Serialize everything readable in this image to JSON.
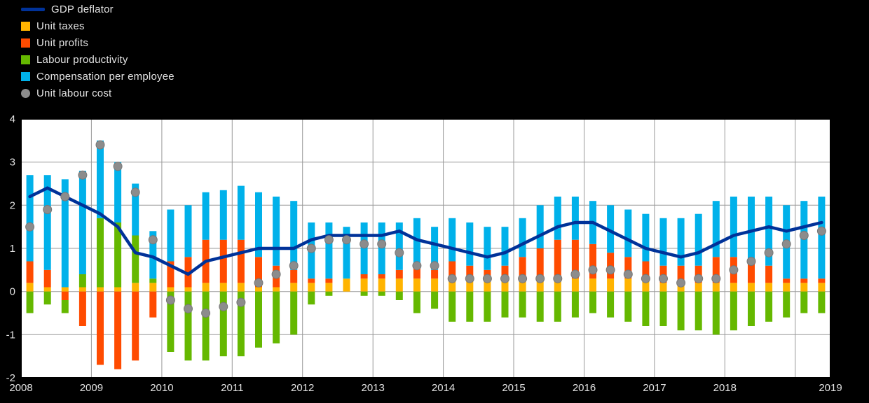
{
  "colors": {
    "background": "#000000",
    "plot_background": "#ffffff",
    "grid": "#999999",
    "border": "#000000",
    "axis_text": "#e2e2e2",
    "deflator_line": "#003299",
    "unit_taxes": "#FFB400",
    "unit_profits": "#FF4B00",
    "labour_productivity": "#65B800",
    "compensation": "#00B1EA",
    "unit_labour_cost": "#8c8c8c"
  },
  "legend": {
    "items": [
      {
        "label": "GDP deflator",
        "type": "line",
        "color": "#003299"
      },
      {
        "label": "Unit taxes",
        "type": "box",
        "color": "#FFB400"
      },
      {
        "label": "Unit profits",
        "type": "box",
        "color": "#FF4B00"
      },
      {
        "label": "Labour productivity",
        "type": "box",
        "color": "#65B800"
      },
      {
        "label": "Compensation per employee",
        "type": "box",
        "color": "#00B1EA"
      },
      {
        "label": "Unit labour cost",
        "type": "dot",
        "color": "#8c8c8c"
      }
    ]
  },
  "chart_data": {
    "type": "bar",
    "subtype": "stacked-bars-with-line-and-dots",
    "title": "",
    "xlabel": "",
    "ylabel": "",
    "ylim": [
      -2,
      4
    ],
    "y_ticks": [
      -2,
      -1,
      0,
      1,
      2,
      3,
      4
    ],
    "grid": true,
    "legend_position": "top-left",
    "x_tick_labels": [
      "2008",
      "2009",
      "2010",
      "2011",
      "2012",
      "2013",
      "2014",
      "2015",
      "2016",
      "2017",
      "2018",
      "2019"
    ],
    "categories": [
      "2008Q1",
      "2008Q2",
      "2008Q3",
      "2008Q4",
      "2009Q1",
      "2009Q2",
      "2009Q3",
      "2009Q4",
      "2010Q1",
      "2010Q2",
      "2010Q3",
      "2010Q4",
      "2011Q1",
      "2011Q2",
      "2011Q3",
      "2011Q4",
      "2012Q1",
      "2012Q2",
      "2012Q3",
      "2012Q4",
      "2013Q1",
      "2013Q2",
      "2013Q3",
      "2013Q4",
      "2014Q1",
      "2014Q2",
      "2014Q3",
      "2014Q4",
      "2015Q1",
      "2015Q2",
      "2015Q3",
      "2015Q4",
      "2016Q1",
      "2016Q2",
      "2016Q3",
      "2016Q4",
      "2017Q1",
      "2017Q2",
      "2017Q3",
      "2017Q4",
      "2018Q1",
      "2018Q2",
      "2018Q3",
      "2018Q4",
      "2019Q1",
      "2019Q2"
    ],
    "series": [
      {
        "name": "Unit taxes",
        "type": "bar",
        "color": "#FFB400",
        "values": [
          0.2,
          0.1,
          0.1,
          0.1,
          0.1,
          0.1,
          0.2,
          0.2,
          0.1,
          0.1,
          0.2,
          0.2,
          0.2,
          0.1,
          0.1,
          0.2,
          0.2,
          0.2,
          0.3,
          0.3,
          0.3,
          0.3,
          0.3,
          0.3,
          0.3,
          0.3,
          0.3,
          0.3,
          0.3,
          0.3,
          0.3,
          0.3,
          0.3,
          0.3,
          0.3,
          0.3,
          0.2,
          0.2,
          0.2,
          0.2,
          0.2,
          0.2,
          0.2,
          0.2,
          0.2,
          0.2
        ]
      },
      {
        "name": "Unit profits",
        "type": "bar",
        "color": "#FF4B00",
        "values": [
          0.5,
          0.4,
          -0.2,
          -0.8,
          -1.7,
          -1.8,
          -1.6,
          -0.6,
          0.6,
          0.7,
          1.0,
          1.0,
          1.0,
          0.7,
          0.5,
          0.3,
          0.1,
          0.1,
          0.0,
          0.1,
          0.1,
          0.2,
          0.3,
          0.2,
          0.4,
          0.3,
          0.2,
          0.3,
          0.5,
          0.7,
          0.9,
          0.9,
          0.8,
          0.6,
          0.5,
          0.4,
          0.4,
          0.4,
          0.4,
          0.6,
          0.6,
          0.5,
          0.4,
          0.1,
          0.1,
          0.1
        ]
      },
      {
        "name": "Labour productivity",
        "type": "bar",
        "color": "#65B800",
        "values": [
          -0.5,
          -0.3,
          -0.3,
          0.3,
          1.6,
          1.5,
          1.1,
          0.1,
          -1.4,
          -1.6,
          -1.6,
          -1.5,
          -1.5,
          -1.3,
          -1.2,
          -1.0,
          -0.3,
          -0.1,
          0.0,
          -0.1,
          -0.1,
          -0.2,
          -0.5,
          -0.4,
          -0.7,
          -0.7,
          -0.7,
          -0.6,
          -0.6,
          -0.7,
          -0.7,
          -0.6,
          -0.5,
          -0.6,
          -0.7,
          -0.8,
          -0.8,
          -0.9,
          -0.9,
          -1.0,
          -0.9,
          -0.8,
          -0.7,
          -0.6,
          -0.5,
          -0.5
        ]
      },
      {
        "name": "Compensation per employee",
        "type": "bar",
        "color": "#00B1EA",
        "values": [
          2.0,
          2.2,
          2.5,
          2.4,
          1.8,
          1.4,
          1.2,
          1.1,
          1.2,
          1.2,
          1.1,
          1.15,
          1.25,
          1.5,
          1.6,
          1.6,
          1.3,
          1.3,
          1.2,
          1.2,
          1.2,
          1.1,
          1.1,
          1.0,
          1.0,
          1.0,
          1.0,
          0.9,
          0.9,
          1.0,
          1.0,
          1.0,
          1.0,
          1.1,
          1.1,
          1.1,
          1.1,
          1.1,
          1.2,
          1.3,
          1.4,
          1.5,
          1.6,
          1.7,
          1.8,
          1.9
        ]
      },
      {
        "name": "GDP deflator",
        "type": "line",
        "color": "#003299",
        "values": [
          2.2,
          2.4,
          2.2,
          2.0,
          1.8,
          1.5,
          0.9,
          0.8,
          0.6,
          0.4,
          0.7,
          0.8,
          0.9,
          1.0,
          1.0,
          1.0,
          1.2,
          1.3,
          1.3,
          1.3,
          1.3,
          1.4,
          1.2,
          1.1,
          1.0,
          0.9,
          0.8,
          0.9,
          1.1,
          1.3,
          1.5,
          1.6,
          1.6,
          1.4,
          1.2,
          1.0,
          0.9,
          0.8,
          0.9,
          1.1,
          1.3,
          1.4,
          1.5,
          1.4,
          1.5,
          1.6
        ]
      },
      {
        "name": "Unit labour cost",
        "type": "scatter",
        "color": "#8c8c8c",
        "values": [
          1.5,
          1.9,
          2.2,
          2.7,
          3.4,
          2.9,
          2.3,
          1.2,
          -0.2,
          -0.4,
          -0.5,
          -0.35,
          -0.25,
          0.2,
          0.4,
          0.6,
          1.0,
          1.2,
          1.2,
          1.1,
          1.1,
          0.9,
          0.6,
          0.6,
          0.3,
          0.3,
          0.3,
          0.3,
          0.3,
          0.3,
          0.3,
          0.4,
          0.5,
          0.5,
          0.4,
          0.3,
          0.3,
          0.2,
          0.3,
          0.3,
          0.5,
          0.7,
          0.9,
          1.1,
          1.3,
          1.4
        ]
      }
    ]
  }
}
